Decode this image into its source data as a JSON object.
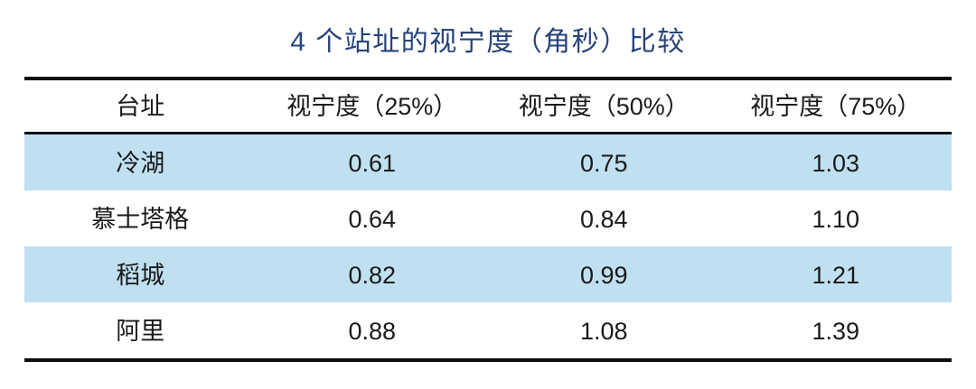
{
  "title": "4 个站址的视宁度（角秒）比较",
  "table": {
    "headers": [
      "台址",
      "视宁度（25%）",
      "视宁度（50%）",
      "视宁度（75%）"
    ],
    "rows": [
      {
        "cells": [
          "冷湖",
          "0.61",
          "0.75",
          "1.03"
        ],
        "highlighted": true
      },
      {
        "cells": [
          "慕士塔格",
          "0.64",
          "0.84",
          "1.10"
        ],
        "highlighted": false
      },
      {
        "cells": [
          "稻城",
          "0.82",
          "0.99",
          "1.21"
        ],
        "highlighted": true
      },
      {
        "cells": [
          "阿里",
          "0.88",
          "1.08",
          "1.39"
        ],
        "highlighted": false
      }
    ]
  },
  "colors": {
    "title_color": "#274379",
    "row_highlight": "#bfe0f1",
    "border_color": "#0c0e13",
    "text_color": "#1a1a1a"
  },
  "chart_data": {
    "type": "table",
    "title": "4 个站址的视宁度（角秒）比较",
    "columns": [
      "台址",
      "视宁度（25%）",
      "视宁度（50%）",
      "视宁度（75%）"
    ],
    "rows": [
      [
        "冷湖",
        0.61,
        0.75,
        1.03
      ],
      [
        "慕士塔格",
        0.64,
        0.84,
        1.1
      ],
      [
        "稻城",
        0.82,
        0.99,
        1.21
      ],
      [
        "阿里",
        0.88,
        1.08,
        1.39
      ]
    ],
    "notes": "Seeing (arcseconds) comparison of 4 candidate observatory sites at 25%, 50%, 75% percentiles; rows 1 and 3 highlighted light blue"
  }
}
